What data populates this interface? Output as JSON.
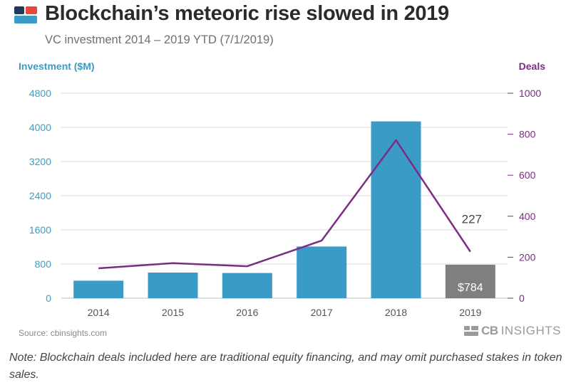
{
  "header": {
    "title": "Blockchain’s meteoric rise slowed in 2019",
    "subtitle": "VC investment 2014 – 2019 YTD (7/1/2019)"
  },
  "colors": {
    "bar": "#3a9cc6",
    "bar_highlight": "#7f7f7f",
    "line": "#7b2d83",
    "left_axis": "#3a9cc6",
    "right_axis": "#7b2d83",
    "logo_blue": "#3a9cc6",
    "logo_red": "#e8473e",
    "logo_dark": "#1f3a5a"
  },
  "chart_data": {
    "type": "bar",
    "categories": [
      "2014",
      "2015",
      "2016",
      "2017",
      "2018",
      "2019"
    ],
    "series": [
      {
        "type": "bar",
        "axis": "left",
        "values": [
          410,
          600,
          590,
          1210,
          4140,
          784
        ]
      },
      {
        "type": "line",
        "axis": "right",
        "values": [
          146,
          171,
          156,
          281,
          771,
          227
        ]
      }
    ],
    "left_axis": {
      "label": "Investment ($M)",
      "ticks": [
        "0",
        "800",
        "1600",
        "2400",
        "3200",
        "4000",
        "4800"
      ],
      "range": [
        0,
        4800
      ]
    },
    "right_axis": {
      "label": "Deals",
      "ticks": [
        "0",
        "200",
        "400",
        "600",
        "800",
        "1000"
      ],
      "range": [
        0,
        1000
      ]
    },
    "annotations": {
      "bar_2019_label": "$784",
      "deals_2019_label": "227"
    },
    "grid": true
  },
  "footer": {
    "source": "Source: cbinsights.com",
    "brand_cb": "CB",
    "brand_insights": "INSIGHTS",
    "note": "Note: Blockchain deals included here are traditional equity financing, and may omit purchased stakes in token sales."
  }
}
